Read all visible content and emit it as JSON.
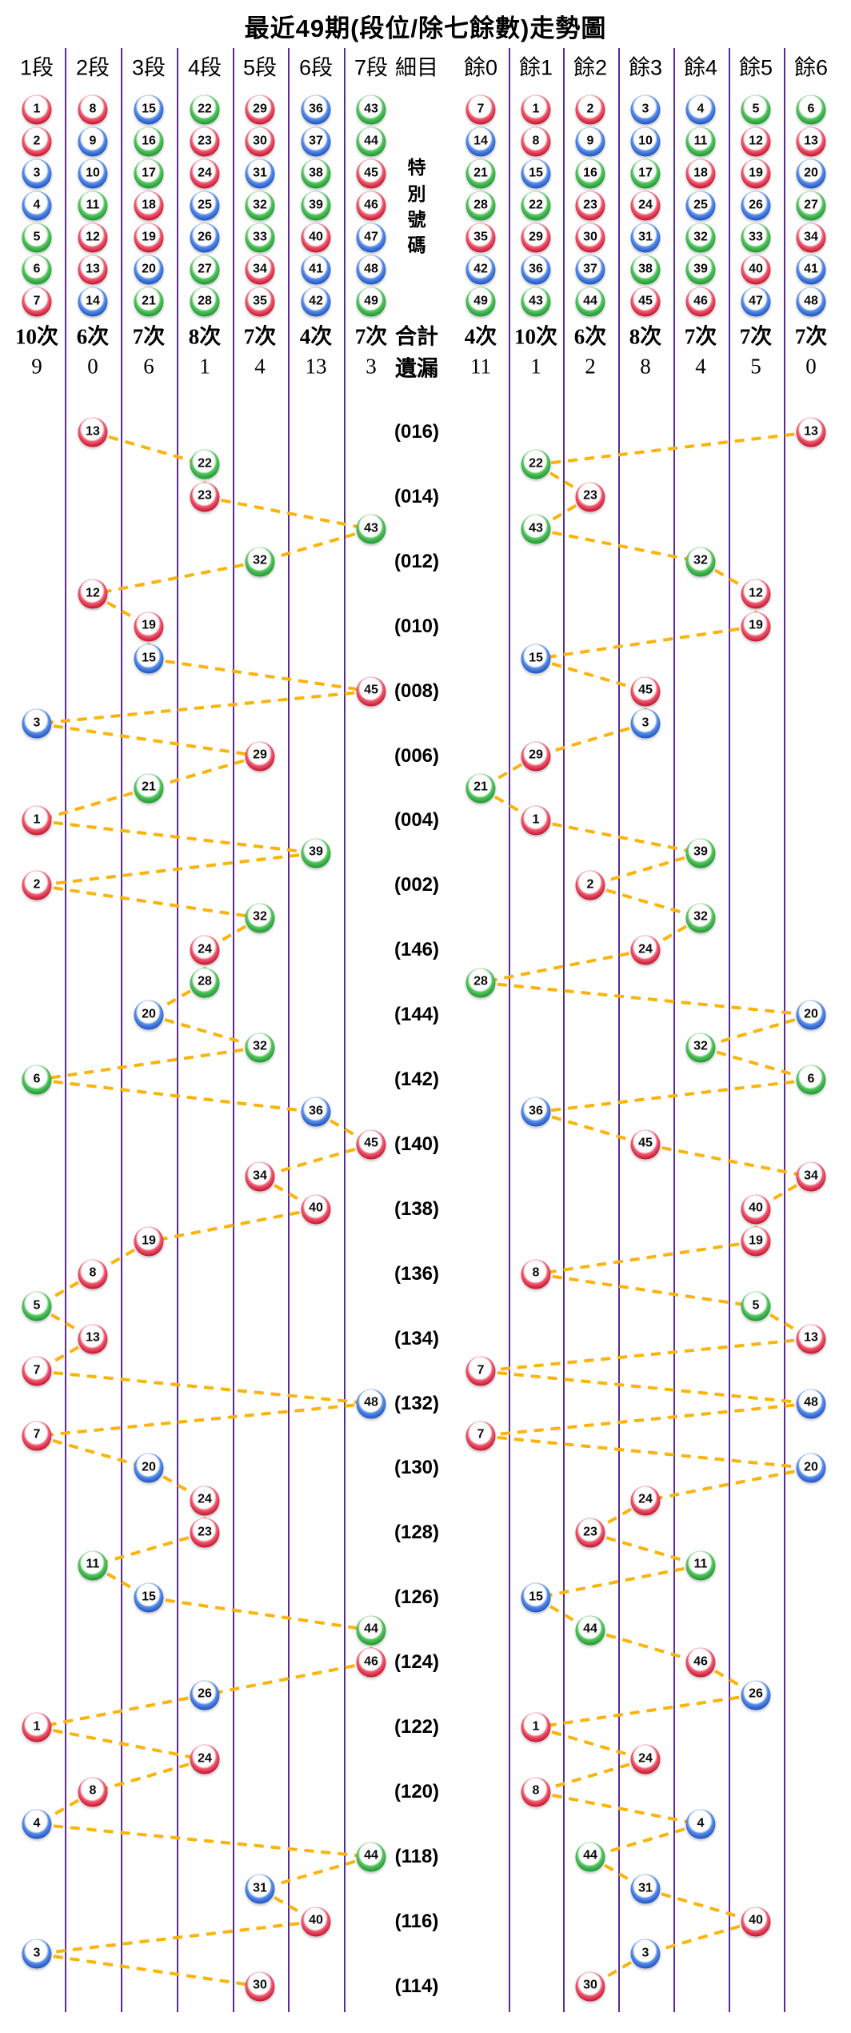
{
  "title": "最近49期(段位/除七餘數)走勢圖",
  "colors": {
    "red": "#C81733",
    "blue": "#1F57C4",
    "green": "#1F9B33",
    "grid_line": "#5B2C91",
    "link_line": "#FCB40C",
    "red_numbers": [
      1,
      2,
      7,
      8,
      12,
      13,
      18,
      19,
      23,
      24,
      29,
      30,
      34,
      35,
      40,
      45,
      46
    ],
    "blue_numbers": [
      3,
      4,
      9,
      10,
      14,
      15,
      20,
      25,
      26,
      31,
      36,
      37,
      41,
      42,
      47,
      48
    ],
    "green_numbers": [
      5,
      6,
      11,
      16,
      17,
      21,
      22,
      27,
      28,
      32,
      33,
      38,
      39,
      43,
      44,
      49
    ]
  },
  "header": {
    "left_labels": [
      "1段",
      "2段",
      "3段",
      "4段",
      "5段",
      "6段",
      "7段"
    ],
    "middle_label": "細目",
    "right_labels": [
      "餘0",
      "餘1",
      "餘2",
      "餘3",
      "餘4",
      "餘5",
      "餘6"
    ],
    "left_ball_columns": [
      [
        1,
        2,
        3,
        4,
        5,
        6,
        7
      ],
      [
        8,
        9,
        10,
        11,
        12,
        13,
        14
      ],
      [
        15,
        16,
        17,
        18,
        19,
        20,
        21
      ],
      [
        22,
        23,
        24,
        25,
        26,
        27,
        28
      ],
      [
        29,
        30,
        31,
        32,
        33,
        34,
        35
      ],
      [
        36,
        37,
        38,
        39,
        40,
        41,
        42
      ],
      [
        43,
        44,
        45,
        46,
        47,
        48,
        49
      ]
    ],
    "right_ball_columns": [
      [
        7,
        14,
        21,
        28,
        35,
        42,
        49
      ],
      [
        1,
        8,
        15,
        22,
        29,
        36,
        43
      ],
      [
        2,
        9,
        16,
        23,
        30,
        37,
        44
      ],
      [
        3,
        10,
        17,
        24,
        31,
        38,
        45
      ],
      [
        4,
        11,
        18,
        25,
        32,
        39,
        46
      ],
      [
        5,
        12,
        19,
        26,
        33,
        40,
        47
      ],
      [
        6,
        13,
        20,
        27,
        34,
        41,
        48
      ]
    ]
  },
  "middle": {
    "special_number_chars": [
      "特",
      "別",
      "號",
      "碼"
    ],
    "total_label": "合計",
    "missing_label": "遺漏"
  },
  "summary": {
    "left_counts": [
      "10次",
      "6次",
      "7次",
      "8次",
      "7次",
      "4次",
      "7次"
    ],
    "right_counts": [
      "4次",
      "10次",
      "6次",
      "8次",
      "7次",
      "7次",
      "7次"
    ],
    "left_missing": [
      "9",
      "0",
      "6",
      "1",
      "4",
      "13",
      "3"
    ],
    "right_missing": [
      "11",
      "1",
      "2",
      "8",
      "4",
      "5",
      "0"
    ]
  },
  "chart_data": {
    "type": "scatter",
    "title": "最近49期(段位/除七餘數)走勢圖",
    "left_axis_categories": [
      "1段",
      "2段",
      "3段",
      "4段",
      "5段",
      "6段",
      "7段"
    ],
    "right_axis_categories": [
      "餘0",
      "餘1",
      "餘2",
      "餘3",
      "餘4",
      "餘5",
      "餘6"
    ],
    "legend": "each row = one draw period; ball = special number plotted by segment (left) and by number mod 7 (right); consecutive rows joined by dashed lines",
    "rows": [
      {
        "label": "(016)",
        "n": 13,
        "segment": 2,
        "mod": 6
      },
      {
        "label": "",
        "n": 22,
        "segment": 4,
        "mod": 1
      },
      {
        "label": "(014)",
        "n": 23,
        "segment": 4,
        "mod": 2
      },
      {
        "label": "",
        "n": 43,
        "segment": 7,
        "mod": 1
      },
      {
        "label": "(012)",
        "n": 32,
        "segment": 5,
        "mod": 4
      },
      {
        "label": "",
        "n": 12,
        "segment": 2,
        "mod": 5
      },
      {
        "label": "(010)",
        "n": 19,
        "segment": 3,
        "mod": 5
      },
      {
        "label": "",
        "n": 15,
        "segment": 3,
        "mod": 1
      },
      {
        "label": "(008)",
        "n": 45,
        "segment": 7,
        "mod": 3
      },
      {
        "label": "",
        "n": 3,
        "segment": 1,
        "mod": 3
      },
      {
        "label": "(006)",
        "n": 29,
        "segment": 5,
        "mod": 1
      },
      {
        "label": "",
        "n": 21,
        "segment": 3,
        "mod": 0
      },
      {
        "label": "(004)",
        "n": 1,
        "segment": 1,
        "mod": 1
      },
      {
        "label": "",
        "n": 39,
        "segment": 6,
        "mod": 4
      },
      {
        "label": "(002)",
        "n": 2,
        "segment": 1,
        "mod": 2
      },
      {
        "label": "",
        "n": 32,
        "segment": 5,
        "mod": 4
      },
      {
        "label": "(146)",
        "n": 24,
        "segment": 4,
        "mod": 3
      },
      {
        "label": "",
        "n": 28,
        "segment": 4,
        "mod": 0
      },
      {
        "label": "(144)",
        "n": 20,
        "segment": 3,
        "mod": 6
      },
      {
        "label": "",
        "n": 32,
        "segment": 5,
        "mod": 4
      },
      {
        "label": "(142)",
        "n": 6,
        "segment": 1,
        "mod": 6
      },
      {
        "label": "",
        "n": 36,
        "segment": 6,
        "mod": 1
      },
      {
        "label": "(140)",
        "n": 45,
        "segment": 7,
        "mod": 3
      },
      {
        "label": "",
        "n": 34,
        "segment": 5,
        "mod": 6
      },
      {
        "label": "(138)",
        "n": 40,
        "segment": 6,
        "mod": 5
      },
      {
        "label": "",
        "n": 19,
        "segment": 3,
        "mod": 5
      },
      {
        "label": "(136)",
        "n": 8,
        "segment": 2,
        "mod": 1
      },
      {
        "label": "",
        "n": 5,
        "segment": 1,
        "mod": 5
      },
      {
        "label": "(134)",
        "n": 13,
        "segment": 2,
        "mod": 6
      },
      {
        "label": "",
        "n": 7,
        "segment": 1,
        "mod": 0
      },
      {
        "label": "(132)",
        "n": 48,
        "segment": 7,
        "mod": 6
      },
      {
        "label": "",
        "n": 7,
        "segment": 1,
        "mod": 0
      },
      {
        "label": "(130)",
        "n": 20,
        "segment": 3,
        "mod": 6
      },
      {
        "label": "",
        "n": 24,
        "segment": 4,
        "mod": 3
      },
      {
        "label": "(128)",
        "n": 23,
        "segment": 4,
        "mod": 2
      },
      {
        "label": "",
        "n": 11,
        "segment": 2,
        "mod": 4
      },
      {
        "label": "(126)",
        "n": 15,
        "segment": 3,
        "mod": 1
      },
      {
        "label": "",
        "n": 44,
        "segment": 7,
        "mod": 2
      },
      {
        "label": "(124)",
        "n": 46,
        "segment": 7,
        "mod": 4
      },
      {
        "label": "",
        "n": 26,
        "segment": 4,
        "mod": 5
      },
      {
        "label": "(122)",
        "n": 1,
        "segment": 1,
        "mod": 1
      },
      {
        "label": "",
        "n": 24,
        "segment": 4,
        "mod": 3
      },
      {
        "label": "(120)",
        "n": 8,
        "segment": 2,
        "mod": 1
      },
      {
        "label": "",
        "n": 4,
        "segment": 1,
        "mod": 4
      },
      {
        "label": "(118)",
        "n": 44,
        "segment": 7,
        "mod": 2
      },
      {
        "label": "",
        "n": 31,
        "segment": 5,
        "mod": 3
      },
      {
        "label": "(116)",
        "n": 40,
        "segment": 6,
        "mod": 5
      },
      {
        "label": "",
        "n": 3,
        "segment": 1,
        "mod": 3
      },
      {
        "label": "(114)",
        "n": 30,
        "segment": 5,
        "mod": 2
      }
    ]
  }
}
